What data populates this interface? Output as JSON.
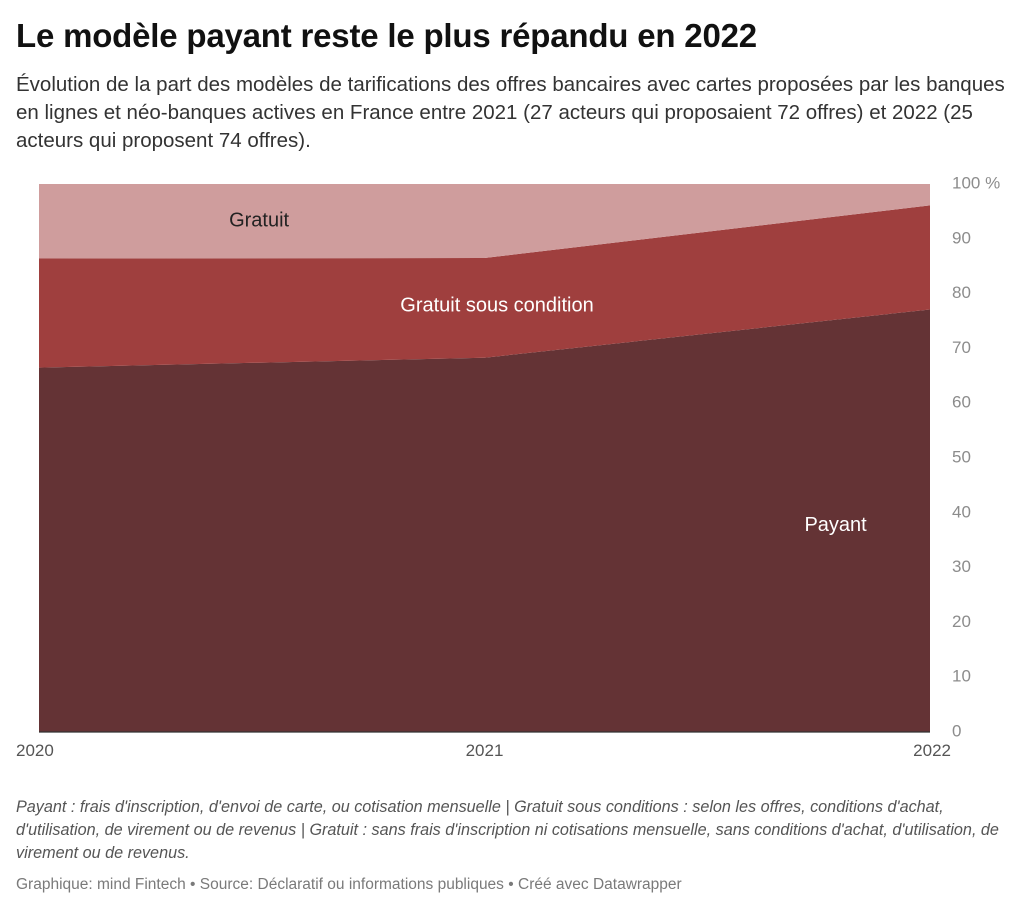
{
  "title": "Le modèle payant reste le plus répandu en 2022",
  "subtitle": "Évolution de la part des modèles de tarifications des offres bancaires avec cartes proposées par les banques en lignes et néo-banques actives en France entre 2021 (27 acteurs qui proposaient 72 offres) et 2022 (25 acteurs qui proposent 74 offres).",
  "notes": "Payant : frais d'inscription, d'envoi de carte, ou cotisation mensuelle | Gratuit sous conditions : selon les offres, conditions d'achat, d'utilisation, de virement ou de revenus | Gratuit : sans frais d'inscription ni cotisations mensuelle, sans conditions d'achat, d'utilisation, de virement ou de revenus.",
  "footer": {
    "graphic": "Graphique: mind Fintech",
    "source": "Source: Déclaratif ou informations publiques",
    "credit": "Créé avec Datawrapper",
    "separator": "•"
  },
  "chart_data": {
    "type": "area",
    "stacked": true,
    "x": [
      "2020",
      "2021",
      "2022"
    ],
    "series": [
      {
        "name": "Payant",
        "values": [
          66.5,
          68.3,
          77.1
        ],
        "color": "#643335"
      },
      {
        "name": "Gratuit sous condition",
        "values": [
          19.9,
          18.2,
          19.0
        ],
        "color": "#9f3f3e"
      },
      {
        "name": "Gratuit",
        "values": [
          13.6,
          13.5,
          3.9
        ],
        "color": "#cf9d9d"
      }
    ],
    "ylim": [
      0,
      100
    ],
    "y_ticks": [
      {
        "value": 0,
        "label": "0"
      },
      {
        "value": 10,
        "label": "10"
      },
      {
        "value": 20,
        "label": "20"
      },
      {
        "value": 30,
        "label": "30"
      },
      {
        "value": 40,
        "label": "40"
      },
      {
        "value": 50,
        "label": "50"
      },
      {
        "value": 60,
        "label": "60"
      },
      {
        "value": 70,
        "label": "70"
      },
      {
        "value": 80,
        "label": "80"
      },
      {
        "value": 90,
        "label": "90"
      },
      {
        "value": 100,
        "label": "100 %"
      }
    ],
    "y_axis_position": "right",
    "xlabel": "",
    "ylabel": "",
    "grid": false,
    "legend": "direct-labels",
    "colors": {
      "axis_text": "#8c8c8c",
      "baseline": "#333333",
      "label_dark": "#222222",
      "label_light": "#ffffff"
    }
  }
}
